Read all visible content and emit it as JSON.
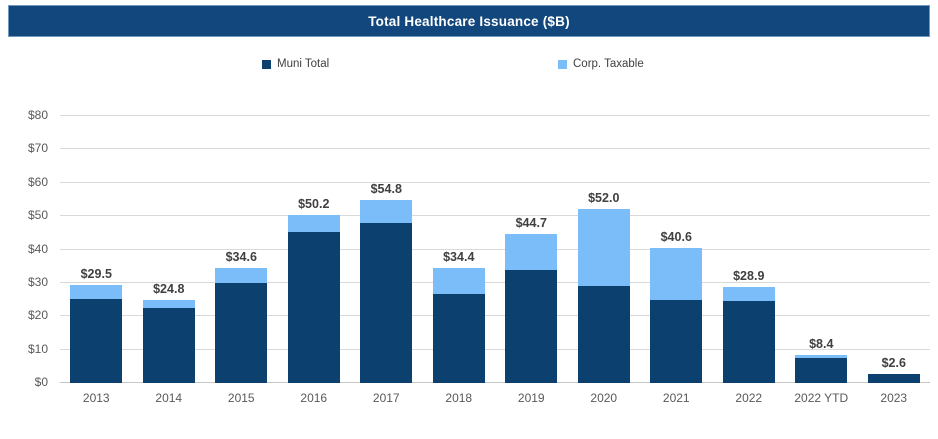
{
  "title": "Total Healthcare Issuance ($B)",
  "legend": [
    {
      "label": "Muni Total",
      "color": "#0B406F"
    },
    {
      "label": "Corp. Taxable",
      "color": "#7BBDF8"
    }
  ],
  "colors": {
    "title_bar_bg": "#12477D",
    "title_bar_border": "#6F9ABF",
    "title_text": "#FFFFFF",
    "muni": "#0B406F",
    "corp_taxable": "#7BBDF8",
    "gridline": "#D9D9D9",
    "axis_label": "#595959",
    "data_label": "#404040"
  },
  "chart_data": {
    "type": "bar",
    "stacked": true,
    "title": "Total Healthcare Issuance ($B)",
    "xlabel": "",
    "ylabel": "",
    "grid": true,
    "legend_position": "top",
    "ylim": [
      0,
      80
    ],
    "ytick_values": [
      0,
      10,
      20,
      30,
      40,
      50,
      60,
      70,
      80
    ],
    "ytick_labels": [
      "$0",
      "$10",
      "$20",
      "$30",
      "$40",
      "$50",
      "$60",
      "$70",
      "$80"
    ],
    "categories": [
      "2013",
      "2014",
      "2015",
      "2016",
      "2017",
      "2018",
      "2019",
      "2020",
      "2021",
      "2022",
      "2022 YTD",
      "2023"
    ],
    "series": [
      {
        "name": "Muni Total",
        "color": "#0B406F",
        "values": [
          25.3,
          22.5,
          30.0,
          45.1,
          48.0,
          26.8,
          34.0,
          29.0,
          25.0,
          24.5,
          7.5,
          2.6
        ]
      },
      {
        "name": "Corp. Taxable",
        "color": "#7BBDF8",
        "values": [
          4.2,
          2.3,
          4.6,
          5.1,
          6.8,
          7.6,
          10.7,
          23.0,
          15.6,
          4.4,
          0.9,
          0.0
        ]
      }
    ],
    "totals": [
      29.5,
      24.8,
      34.6,
      50.2,
      54.8,
      34.4,
      44.7,
      52.0,
      40.6,
      28.9,
      8.4,
      2.6
    ],
    "total_labels": [
      "$29.5",
      "$24.8",
      "$34.6",
      "$50.2",
      "$54.8",
      "$34.4",
      "$44.7",
      "$52.0",
      "$40.6",
      "$28.9",
      "$8.4",
      "$2.6"
    ]
  }
}
